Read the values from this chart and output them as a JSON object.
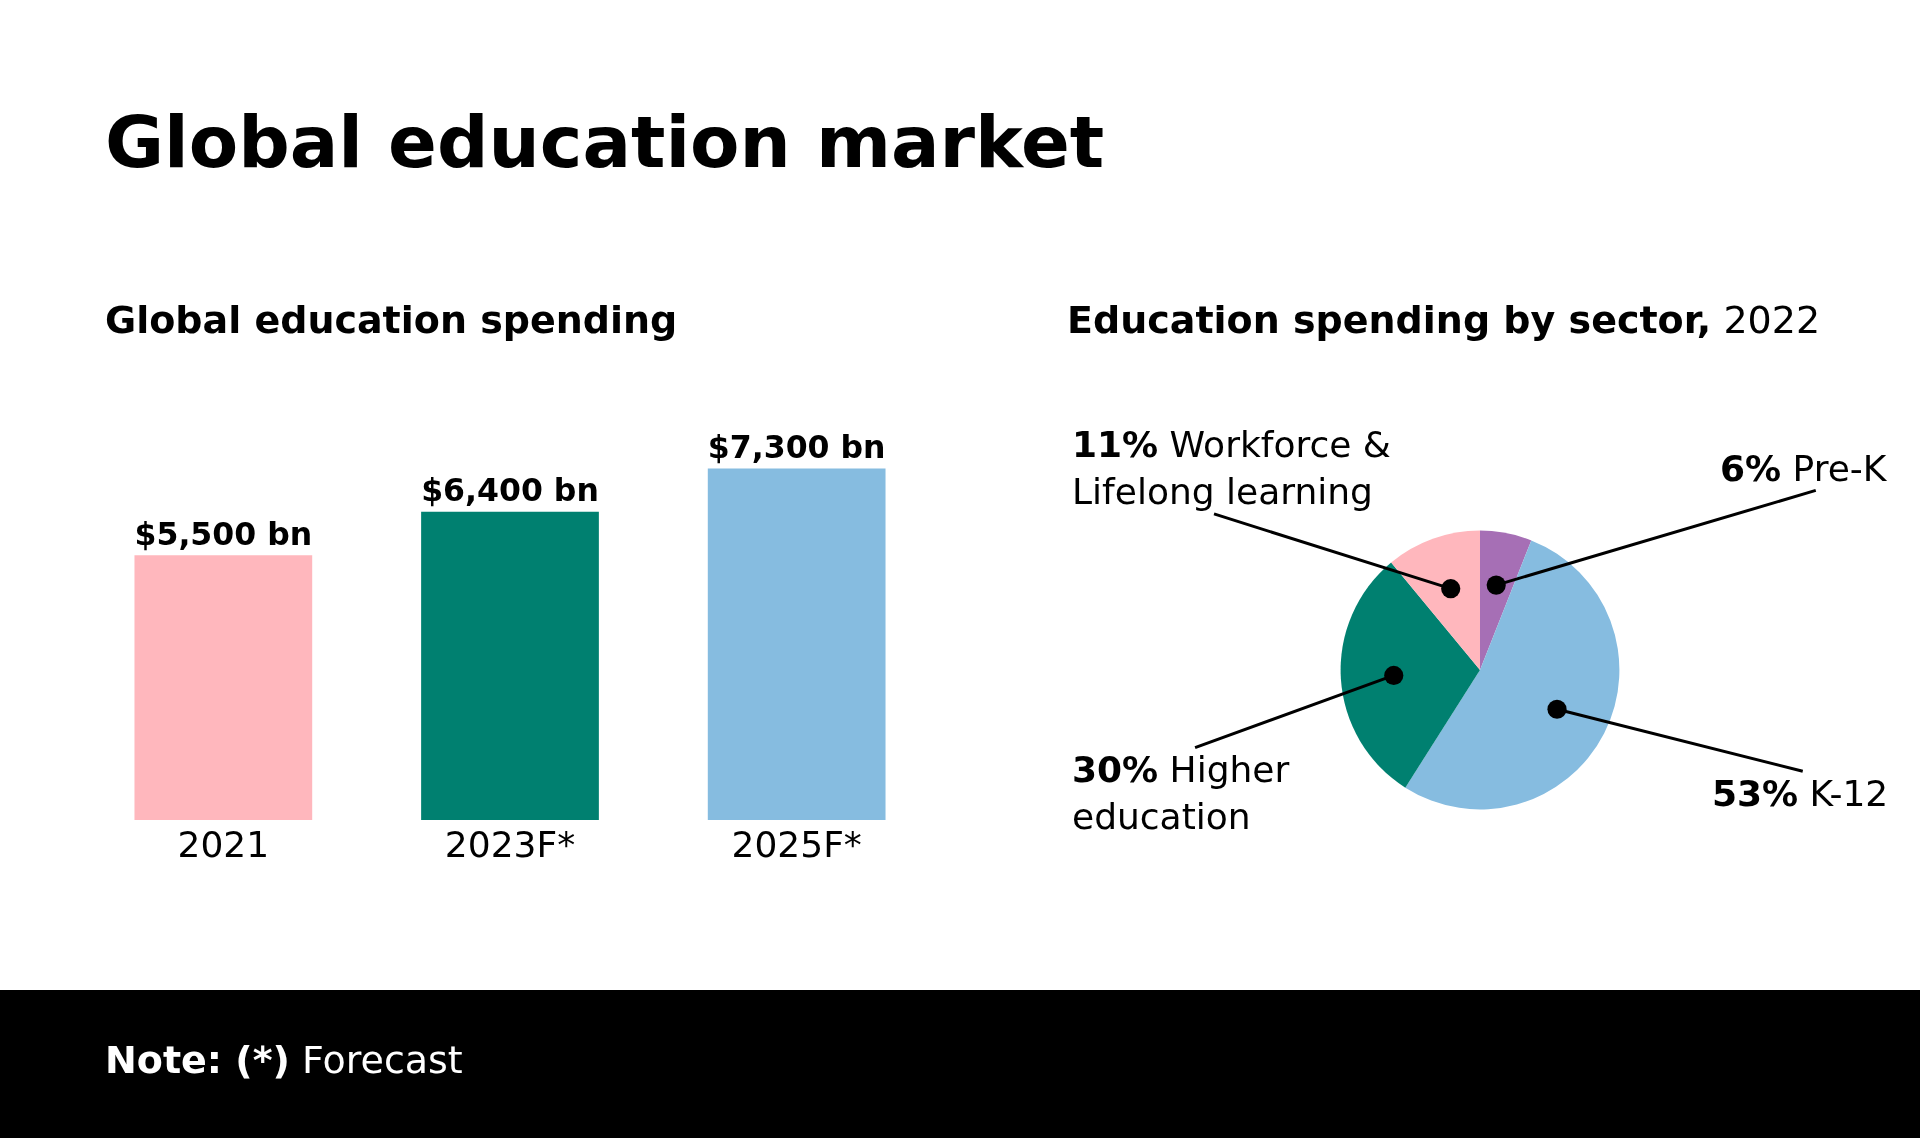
{
  "chart_data": [
    {
      "type": "bar",
      "title": "Global education market",
      "subtitle": "Global education spending",
      "categories": [
        "2021",
        "2023F*",
        "2025F*"
      ],
      "values": [
        5500,
        6400,
        7300
      ],
      "colors": [
        "#ffb7bd",
        "#008070",
        "#86bce0"
      ],
      "value_labels": [
        "$5,500 bn",
        "$6,400 bn",
        "$7,300 bn"
      ],
      "tick_labels": "x",
      "grid": false,
      "legend": false,
      "annotations": [
        "Note: (*) Forecast"
      ]
    },
    {
      "type": "pie",
      "title": "Education spending by sector, 2022",
      "categories": [
        "Pre-K",
        "K-12",
        "Higher education",
        "Workforce & Lifelong learning"
      ],
      "values": [
        6,
        53,
        30,
        11
      ],
      "colors": [
        "#a66fb5",
        "#86bce0",
        "#008070",
        "#ffb7bd"
      ],
      "value_labels": [
        "6%",
        "53%",
        "30%",
        "11%"
      ],
      "legend": false
    }
  ]
}
